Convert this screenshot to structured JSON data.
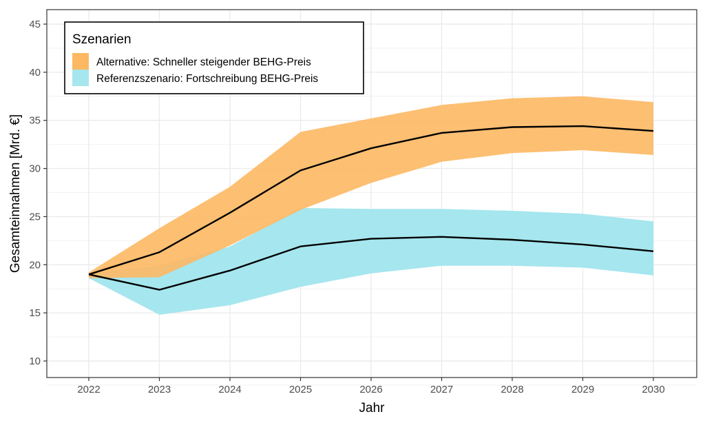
{
  "chart_data": {
    "type": "area",
    "title": "",
    "xlabel": "Jahr",
    "ylabel": "Gesamteinnahmen [Mrd. €]",
    "x": [
      2022,
      2023,
      2024,
      2025,
      2026,
      2027,
      2028,
      2029,
      2030
    ],
    "x_ticks": [
      "2022",
      "2023",
      "2024",
      "2025",
      "2026",
      "2027",
      "2028",
      "2029",
      "2030"
    ],
    "y_ticks": [
      "10",
      "15",
      "20",
      "25",
      "30",
      "35",
      "40",
      "45"
    ],
    "y_tick_values": [
      10,
      15,
      20,
      25,
      30,
      35,
      40,
      45
    ],
    "xlim": [
      2021.42,
      2030.6
    ],
    "ylim": [
      8.3,
      46.5
    ],
    "grid": true,
    "legend": {
      "title": "Szenarien",
      "placement": "top-left",
      "entries": [
        {
          "label": "Alternative: Schneller steigender BEHG-Preis",
          "color": "#FDB863"
        },
        {
          "label": "Referenzszenario: Fortschreibung BEHG-Preis",
          "color": "#A6E6EE"
        }
      ]
    },
    "series": [
      {
        "name": "Alternative: Schneller steigender BEHG-Preis",
        "color": "#FDB863",
        "line_color": "#000000",
        "values": [
          19.0,
          21.3,
          25.4,
          29.8,
          32.1,
          33.7,
          34.3,
          34.4,
          33.9
        ],
        "upper": [
          19.2,
          23.8,
          28.1,
          33.8,
          35.2,
          36.6,
          37.3,
          37.5,
          36.9
        ],
        "lower": [
          18.6,
          18.7,
          22.0,
          25.7,
          28.5,
          30.7,
          31.6,
          31.9,
          31.4
        ]
      },
      {
        "name": "Referenzszenario: Fortschreibung BEHG-Preis",
        "color": "#A6E6EE",
        "line_color": "#000000",
        "values": [
          19.0,
          17.4,
          19.4,
          21.9,
          22.7,
          22.9,
          22.6,
          22.1,
          21.4
        ],
        "upper": [
          19.1,
          19.9,
          21.9,
          25.9,
          25.8,
          25.8,
          25.6,
          25.3,
          24.5
        ],
        "lower": [
          18.6,
          14.8,
          15.8,
          17.7,
          19.1,
          19.9,
          19.9,
          19.7,
          18.9
        ]
      }
    ]
  }
}
